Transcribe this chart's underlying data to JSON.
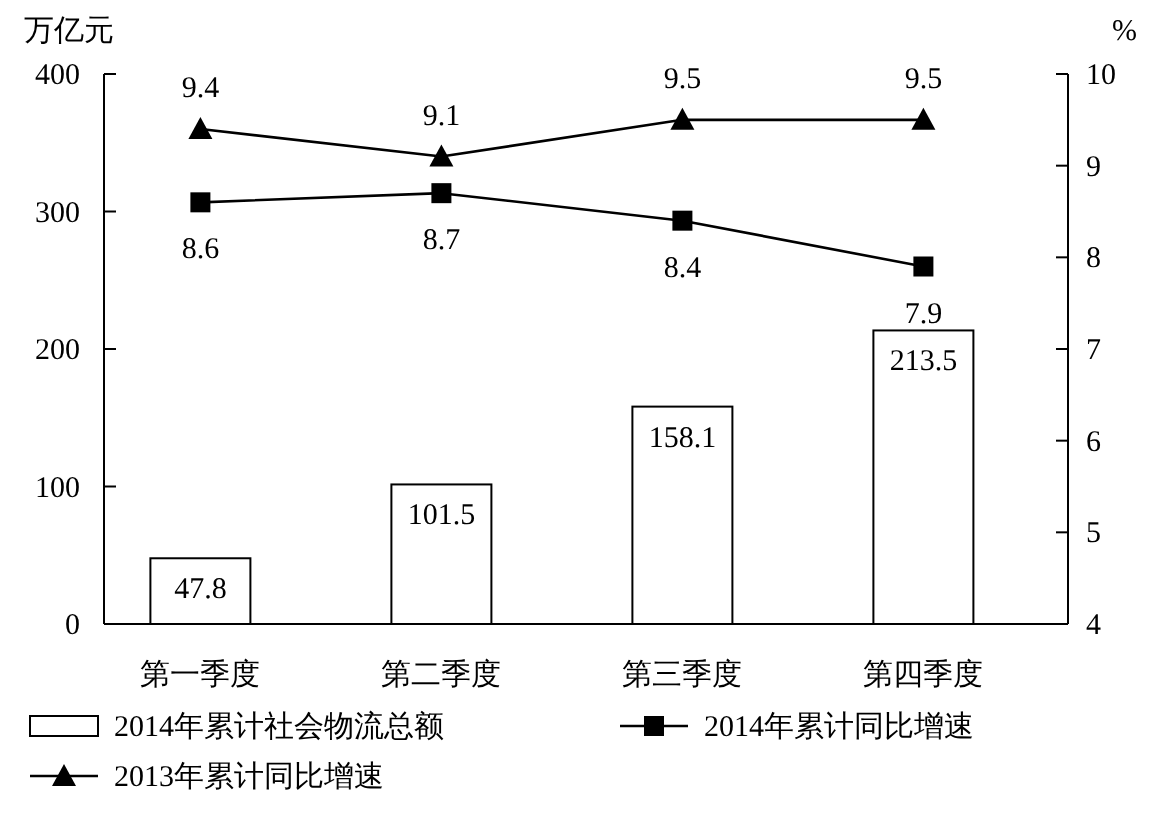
{
  "chart_data": {
    "type": "bar",
    "categories": [
      "第一季度",
      "第二季度",
      "第三季度",
      "第四季度"
    ],
    "ylabel": "万亿元",
    "y2label": "%",
    "ylim": [
      0,
      400
    ],
    "yticks": [
      0,
      100,
      200,
      300,
      400
    ],
    "y2lim": [
      4,
      10
    ],
    "y2ticks": [
      4,
      5,
      6,
      7,
      8,
      9,
      10
    ],
    "series": [
      {
        "name": "2014年累计社会物流总额",
        "color": "#ffffff",
        "values": [
          47.8,
          101.5,
          158.1,
          213.5
        ]
      },
      {
        "name": "2014年累计同比增速",
        "type": "line",
        "axis": "y2",
        "marker": "square",
        "color": "#000000",
        "values": [
          8.6,
          8.7,
          8.4,
          7.9
        ]
      },
      {
        "name": "2013年累计同比增速",
        "type": "line",
        "axis": "y2",
        "marker": "triangle",
        "color": "#000000",
        "values": [
          9.4,
          9.1,
          9.5,
          9.5
        ]
      }
    ],
    "data_labels": true,
    "legend": "bottom",
    "grid": false
  }
}
